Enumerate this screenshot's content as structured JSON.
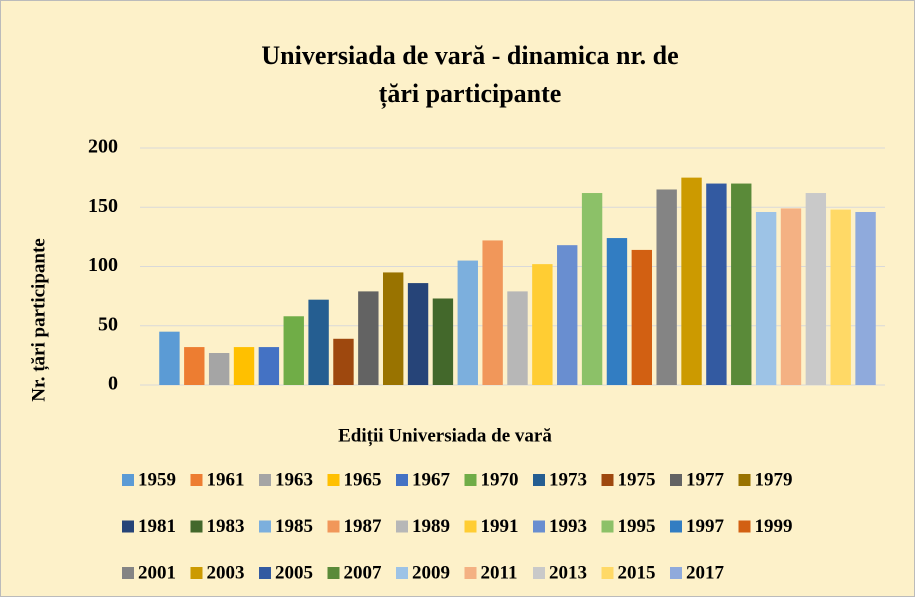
{
  "chart_data": {
    "type": "bar",
    "title": "Universiada de vară - dinamica  nr. de țări participante",
    "x_label": "Ediții Universiada de vară",
    "y_label": "Nr. țări participante",
    "ylim": [
      0,
      200
    ],
    "yticks": [
      0,
      50,
      100,
      150,
      200
    ],
    "grid": true,
    "legend": "bottom",
    "series": [
      {
        "name": "1959",
        "color": "#5b9bd5",
        "values": [
          45
        ]
      },
      {
        "name": "1961",
        "color": "#ed7d31",
        "values": [
          32
        ]
      },
      {
        "name": "1963",
        "color": "#a5a5a5",
        "values": [
          27
        ]
      },
      {
        "name": "1965",
        "color": "#ffc000",
        "values": [
          32
        ]
      },
      {
        "name": "1967",
        "color": "#4472c4",
        "values": [
          32
        ]
      },
      {
        "name": "1970",
        "color": "#70ad47",
        "values": [
          58
        ]
      },
      {
        "name": "1973",
        "color": "#255e91",
        "values": [
          72
        ]
      },
      {
        "name": "1975",
        "color": "#9e480e",
        "values": [
          39
        ]
      },
      {
        "name": "1977",
        "color": "#636363",
        "values": [
          79
        ]
      },
      {
        "name": "1979",
        "color": "#997300",
        "values": [
          95
        ]
      },
      {
        "name": "1981",
        "color": "#264478",
        "values": [
          86
        ]
      },
      {
        "name": "1983",
        "color": "#43682b",
        "values": [
          73
        ]
      },
      {
        "name": "1985",
        "color": "#7cafdd",
        "values": [
          105
        ]
      },
      {
        "name": "1987",
        "color": "#f1975a",
        "values": [
          122
        ]
      },
      {
        "name": "1989",
        "color": "#b7b7b7",
        "values": [
          79
        ]
      },
      {
        "name": "1991",
        "color": "#ffcd33",
        "values": [
          102
        ]
      },
      {
        "name": "1993",
        "color": "#698ed0",
        "values": [
          118
        ]
      },
      {
        "name": "1995",
        "color": "#8cc168",
        "values": [
          162
        ]
      },
      {
        "name": "1997",
        "color": "#327dc2",
        "values": [
          124
        ]
      },
      {
        "name": "1999",
        "color": "#d26012",
        "values": [
          114
        ]
      },
      {
        "name": "2001",
        "color": "#848484",
        "values": [
          165
        ]
      },
      {
        "name": "2003",
        "color": "#cc9a00",
        "values": [
          175
        ]
      },
      {
        "name": "2005",
        "color": "#335aa1",
        "values": [
          170
        ]
      },
      {
        "name": "2007",
        "color": "#5a8a39",
        "values": [
          170
        ]
      },
      {
        "name": "2009",
        "color": "#9dc3e6",
        "values": [
          146
        ]
      },
      {
        "name": "2011",
        "color": "#f4b183",
        "values": [
          149
        ]
      },
      {
        "name": "2013",
        "color": "#c9c9c9",
        "values": [
          162
        ]
      },
      {
        "name": "2015",
        "color": "#ffd966",
        "values": [
          148
        ]
      },
      {
        "name": "2017",
        "color": "#8faadc",
        "values": [
          146
        ]
      }
    ]
  }
}
